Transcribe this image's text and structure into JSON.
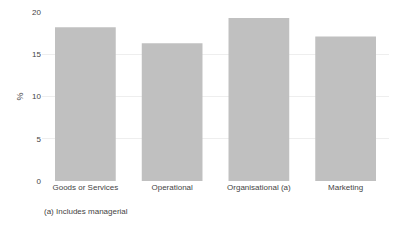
{
  "chart_data": {
    "type": "bar",
    "categories": [
      "Goods or Services",
      "Operational",
      "Organisational (a)",
      "Marketing"
    ],
    "values": [
      18.2,
      16.3,
      19.3,
      17.1
    ],
    "color": "#c0c0c0",
    "ylabel": "%",
    "ylim": [
      0,
      20
    ],
    "yticks": [
      0,
      5,
      10,
      15,
      20
    ],
    "grid": true,
    "annotations": [
      "(a) Includes managerial"
    ]
  }
}
